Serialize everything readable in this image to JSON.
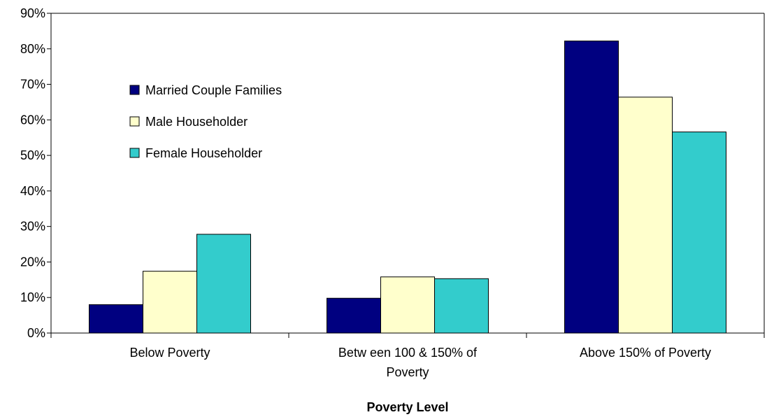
{
  "chart_data": {
    "type": "bar",
    "categories": [
      [
        "Below  Poverty"
      ],
      [
        "Betw een 100 & 150% of",
        "Poverty"
      ],
      [
        "Above 150% of Poverty"
      ]
    ],
    "series": [
      {
        "name": "Married Couple Families",
        "values": [
          8,
          9.8,
          82.2
        ],
        "color": "#000080"
      },
      {
        "name": "Male Householder",
        "values": [
          17.4,
          15.8,
          66.4
        ],
        "color": "#ffffcc"
      },
      {
        "name": "Female Householder",
        "values": [
          27.8,
          15.3,
          56.6
        ],
        "color": "#33cccc"
      }
    ],
    "xlabel": "Poverty Level",
    "ylabel": "",
    "ylim": [
      0,
      90
    ],
    "yticks": [
      "0%",
      "10%",
      "20%",
      "30%",
      "40%",
      "50%",
      "60%",
      "70%",
      "80%",
      "90%"
    ],
    "legend_position": "upper-left inside plot",
    "grid": false
  }
}
